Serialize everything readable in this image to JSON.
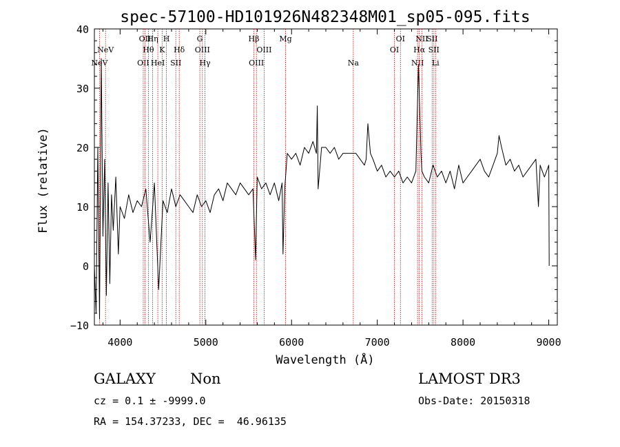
{
  "chart_data": {
    "type": "line",
    "title": "spec-57100-HD101926N482348M01_sp05-095.fits",
    "xlabel": "Wavelength (Å)",
    "ylabel": "Flux (relative)",
    "xlim": [
      3700,
      9100
    ],
    "ylim": [
      -10,
      40
    ],
    "xticks": [
      4000,
      5000,
      6000,
      7000,
      8000,
      9000
    ],
    "yticks": [
      -10,
      0,
      10,
      20,
      30,
      40
    ],
    "line_color": "#000000",
    "marker_color": "#cc0000",
    "series": [
      {
        "name": "flux",
        "x": [
          3700,
          3720,
          3740,
          3760,
          3780,
          3800,
          3820,
          3840,
          3860,
          3880,
          3900,
          3920,
          3950,
          3980,
          4000,
          4050,
          4100,
          4150,
          4200,
          4250,
          4300,
          4350,
          4400,
          4450,
          4500,
          4550,
          4600,
          4650,
          4700,
          4750,
          4800,
          4850,
          4900,
          4950,
          5000,
          5050,
          5100,
          5150,
          5200,
          5250,
          5300,
          5350,
          5400,
          5450,
          5500,
          5550,
          5580,
          5600,
          5650,
          5700,
          5750,
          5800,
          5850,
          5890,
          5900,
          5920,
          5950,
          6000,
          6050,
          6100,
          6150,
          6200,
          6250,
          6290,
          6300,
          6310,
          6350,
          6400,
          6450,
          6500,
          6550,
          6600,
          6650,
          6700,
          6750,
          6800,
          6850,
          6870,
          6890,
          6920,
          6950,
          7000,
          7050,
          7100,
          7150,
          7200,
          7250,
          7300,
          7350,
          7400,
          7450,
          7480,
          7500,
          7510,
          7520,
          7550,
          7600,
          7650,
          7700,
          7750,
          7800,
          7850,
          7900,
          7950,
          8000,
          8050,
          8100,
          8150,
          8200,
          8250,
          8300,
          8350,
          8400,
          8420,
          8450,
          8500,
          8550,
          8600,
          8650,
          8700,
          8750,
          8800,
          8850,
          8880,
          8900,
          8950,
          9000,
          9005
        ],
        "y": [
          0,
          -8,
          20,
          -9,
          35,
          5,
          18,
          -5,
          14,
          -3,
          12,
          6,
          15,
          2,
          10,
          8,
          12,
          9,
          11,
          10,
          13,
          4,
          14,
          -4,
          11,
          9,
          13,
          10,
          12,
          11,
          10,
          9,
          12,
          10,
          11,
          9,
          12,
          13,
          11,
          14,
          13,
          12,
          14,
          13,
          12,
          13,
          1,
          15,
          13,
          14,
          12,
          14,
          11,
          14,
          2,
          13,
          19,
          18,
          19,
          17,
          20,
          19,
          21,
          19,
          27,
          13,
          20,
          20,
          19,
          20,
          18,
          19,
          19,
          19,
          19,
          18,
          17,
          18,
          24,
          19,
          18,
          16,
          17,
          15,
          16,
          15,
          16,
          14,
          15,
          14,
          16,
          34,
          24,
          19,
          16,
          15,
          14,
          17,
          15,
          16,
          14,
          16,
          13,
          17,
          14,
          15,
          16,
          17,
          18,
          16,
          15,
          17,
          19,
          22,
          20,
          17,
          18,
          16,
          17,
          15,
          16,
          17,
          18,
          10,
          17,
          15,
          17,
          0
        ]
      }
    ],
    "line_markers": [
      {
        "label": "NeV",
        "x": 3760,
        "row": 3
      },
      {
        "label": "NeV",
        "x": 3830,
        "row": 1
      },
      {
        "label": "OII",
        "x": 4270,
        "row": 3
      },
      {
        "label": "OII",
        "x": 4290,
        "row": 0
      },
      {
        "label": "Hθ",
        "x": 4330,
        "row": 1
      },
      {
        "label": "Hη",
        "x": 4380,
        "row": 0
      },
      {
        "label": "HeI",
        "x": 4440,
        "row": 3
      },
      {
        "label": "K",
        "x": 4490,
        "row": 1
      },
      {
        "label": "H",
        "x": 4540,
        "row": 0
      },
      {
        "label": "SII",
        "x": 4650,
        "row": 3
      },
      {
        "label": "Hδ",
        "x": 4690,
        "row": 1
      },
      {
        "label": "G",
        "x": 4930,
        "row": 0
      },
      {
        "label": "OIII",
        "x": 4960,
        "row": 1
      },
      {
        "label": "Hγ",
        "x": 4990,
        "row": 3
      },
      {
        "label": "Hβ",
        "x": 5560,
        "row": 0
      },
      {
        "label": "OIII",
        "x": 5590,
        "row": 3
      },
      {
        "label": "OIII",
        "x": 5680,
        "row": 1
      },
      {
        "label": "Mg",
        "x": 5930,
        "row": 0
      },
      {
        "label": "Na",
        "x": 6720,
        "row": 3
      },
      {
        "label": "OI",
        "x": 7200,
        "row": 1
      },
      {
        "label": "OI",
        "x": 7270,
        "row": 0
      },
      {
        "label": "NII",
        "x": 7470,
        "row": 3
      },
      {
        "label": "NII",
        "x": 7520,
        "row": 0
      },
      {
        "label": "Hα",
        "x": 7490,
        "row": 1
      },
      {
        "label": "SII",
        "x": 7640,
        "row": 0
      },
      {
        "label": "SII",
        "x": 7660,
        "row": 1
      },
      {
        "label": "Li",
        "x": 7680,
        "row": 3
      }
    ]
  },
  "info": {
    "object_class": "GALAXY",
    "subclass": "Non",
    "survey": "LAMOST DR3",
    "redshift": "cz = 0.1 ± -9999.0",
    "obs_date": "Obs-Date: 20150318",
    "coords": "RA = 154.37233, DEC =  46.96135"
  }
}
